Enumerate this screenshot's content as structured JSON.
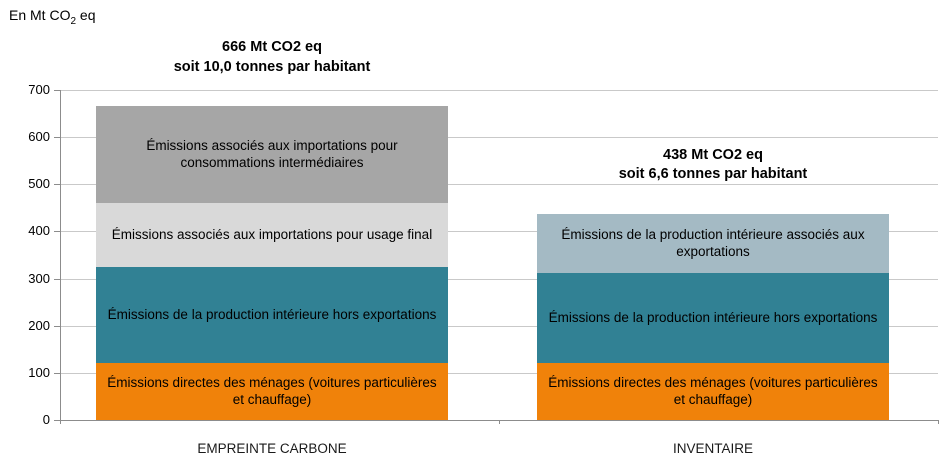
{
  "unit_label": {
    "prefix": "En Mt CO",
    "sub": "2",
    "suffix": " eq"
  },
  "chart_data": {
    "type": "bar",
    "stacked": true,
    "title": "",
    "ylabel": "En Mt CO2 eq",
    "ylim": [
      0,
      700
    ],
    "yticks": [
      0,
      100,
      200,
      300,
      400,
      500,
      600,
      700
    ],
    "grid": true,
    "grid_color": "#C9C9C9",
    "axis_color": "#8C8C8C",
    "categories": [
      "EMPREINTE CARBONE",
      "INVENTAIRE"
    ],
    "bars": [
      {
        "category": "EMPREINTE CARBONE",
        "total": 666,
        "annotation": [
          "666 Mt CO2 eq",
          "soit 10,0 tonnes par habitant"
        ],
        "segments": [
          {
            "label": "Émissions directes des ménages (voitures particulières et chauffage)",
            "value": 121,
            "color": "#F0820A"
          },
          {
            "label": "Émissions de la production intérieure hors exportations",
            "value": 204,
            "color": "#318194"
          },
          {
            "label": "Émissions associés aux importations pour usage final",
            "value": 136,
            "color": "#D9D9D9"
          },
          {
            "label": "Émissions associés aux importations pour consommations intermédiaires",
            "value": 205,
            "color": "#A6A6A6"
          }
        ]
      },
      {
        "category": "INVENTAIRE",
        "total": 438,
        "annotation": [
          "438 Mt CO2 eq",
          "soit 6,6 tonnes par habitant"
        ],
        "segments": [
          {
            "label": "Émissions directes des ménages (voitures particulières et chauffage)",
            "value": 121,
            "color": "#F0820A"
          },
          {
            "label": "Émissions de la production intérieure hors exportations",
            "value": 191,
            "color": "#318194"
          },
          {
            "label": "Émissions de la production intérieure associés aux exportations",
            "value": 126,
            "color": "#A4BAC4"
          }
        ]
      }
    ]
  }
}
